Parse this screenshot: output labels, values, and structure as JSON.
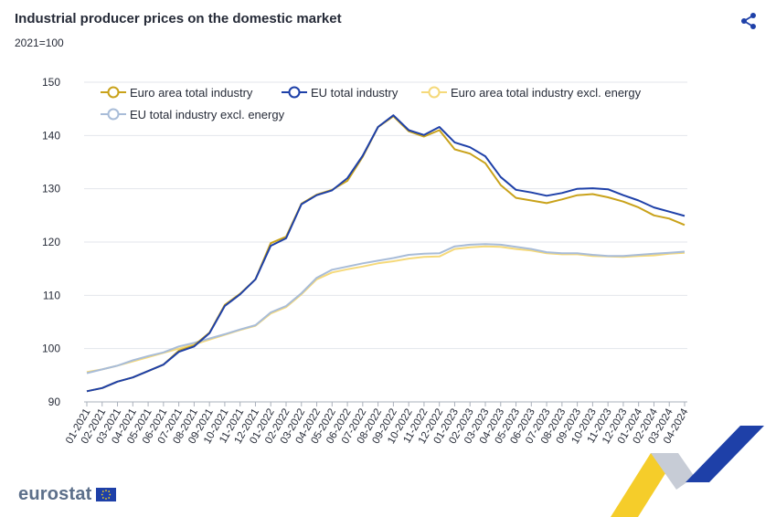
{
  "header": {
    "title": "Industrial producer prices on the domestic market",
    "subtitle": "2021=100"
  },
  "footer": {
    "brand": "eurostat"
  },
  "icons": {
    "share": "share-icon",
    "flag": "eu-flag-icon"
  },
  "chart_data": {
    "type": "line",
    "title": "Industrial producer prices on the domestic market",
    "ylabel": "2021=100",
    "xlabel": "",
    "ylim": [
      90,
      150
    ],
    "yticks": [
      "150",
      "140",
      "130",
      "120",
      "110",
      "100",
      "90"
    ],
    "grid": true,
    "legend_position": "top-left",
    "categories": [
      "01-2021",
      "02-2021",
      "03-2021",
      "04-2021",
      "05-2021",
      "06-2021",
      "07-2021",
      "08-2021",
      "09-2021",
      "10-2021",
      "11-2021",
      "12-2021",
      "01-2022",
      "02-2022",
      "03-2022",
      "04-2022",
      "05-2022",
      "06-2022",
      "07-2022",
      "08-2022",
      "09-2022",
      "10-2022",
      "11-2022",
      "12-2022",
      "01-2023",
      "02-2023",
      "03-2023",
      "04-2023",
      "05-2023",
      "06-2023",
      "07-2023",
      "08-2023",
      "09-2023",
      "10-2023",
      "11-2023",
      "12-2023",
      "01-2024",
      "02-2024",
      "03-2024",
      "04-2024"
    ],
    "series": [
      {
        "name": "Euro area total industry",
        "color": "#c9a21a",
        "values": [
          92.0,
          92.6,
          93.8,
          94.6,
          95.8,
          97.0,
          99.6,
          100.6,
          103.0,
          108.2,
          110.3,
          113.0,
          119.8,
          121.0,
          127.2,
          128.9,
          129.8,
          131.5,
          136.0,
          141.6,
          143.6,
          140.8,
          139.8,
          141.0,
          137.4,
          136.6,
          134.8,
          130.7,
          128.3,
          127.8,
          127.3,
          128.0,
          128.8,
          129.0,
          128.4,
          127.6,
          126.5,
          125.0,
          124.4,
          123.2
        ]
      },
      {
        "name": "EU total industry",
        "color": "#1e40a8",
        "values": [
          92.0,
          92.6,
          93.8,
          94.6,
          95.8,
          97.0,
          99.4,
          100.4,
          102.9,
          108.0,
          110.2,
          113.0,
          119.3,
          120.7,
          127.1,
          128.8,
          129.7,
          132.0,
          136.2,
          141.6,
          143.8,
          141.0,
          140.1,
          141.6,
          138.7,
          137.8,
          136.1,
          132.2,
          129.8,
          129.3,
          128.7,
          129.2,
          130.0,
          130.1,
          129.9,
          128.8,
          127.8,
          126.5,
          125.7,
          124.9
        ]
      },
      {
        "name": "Euro area total industry excl. energy",
        "color": "#f5d97a",
        "values": [
          95.6,
          96.1,
          96.8,
          97.6,
          98.4,
          99.2,
          100.0,
          100.8,
          101.7,
          102.6,
          103.5,
          104.3,
          106.6,
          107.8,
          110.2,
          113.0,
          114.3,
          114.9,
          115.4,
          116.0,
          116.4,
          116.9,
          117.2,
          117.3,
          118.7,
          119.0,
          119.2,
          119.1,
          118.7,
          118.4,
          117.9,
          117.7,
          117.7,
          117.4,
          117.3,
          117.2,
          117.4,
          117.5,
          117.8,
          118.0
        ]
      },
      {
        "name": "EU total industry excl. energy",
        "color": "#a8bcd8",
        "values": [
          95.4,
          96.1,
          96.8,
          97.8,
          98.6,
          99.3,
          100.4,
          101.1,
          101.9,
          102.7,
          103.6,
          104.4,
          106.8,
          108.0,
          110.4,
          113.3,
          114.8,
          115.4,
          116.0,
          116.5,
          117.0,
          117.6,
          117.8,
          117.9,
          119.2,
          119.5,
          119.6,
          119.5,
          119.1,
          118.7,
          118.1,
          117.9,
          117.9,
          117.6,
          117.4,
          117.4,
          117.6,
          117.8,
          118.0,
          118.2
        ]
      }
    ]
  }
}
